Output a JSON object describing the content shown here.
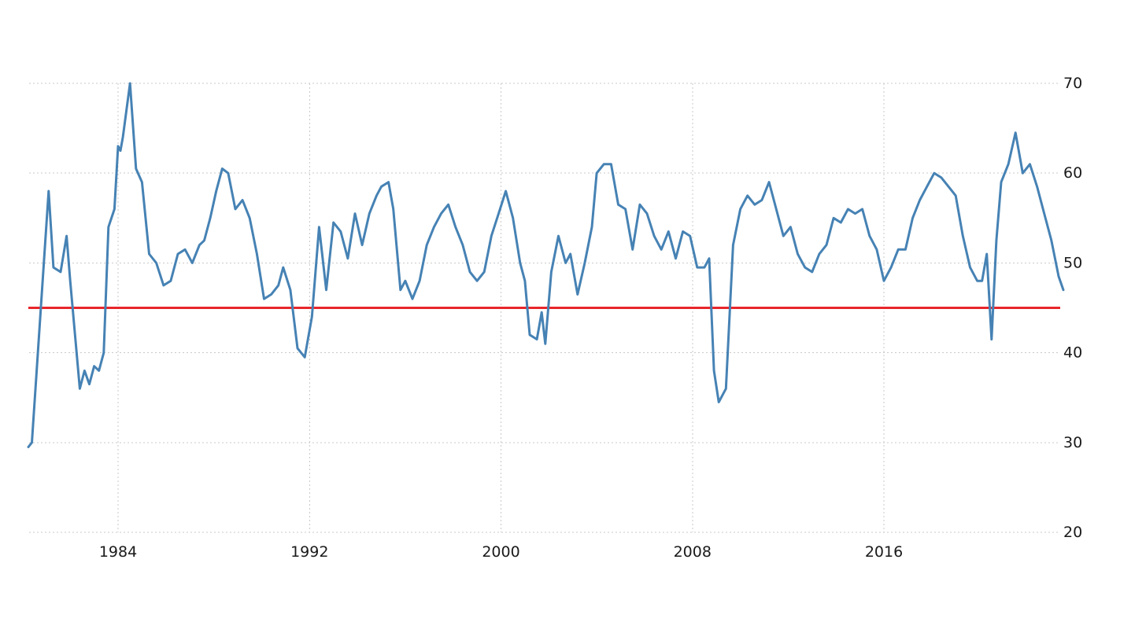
{
  "colors": {
    "series": "#4682b4",
    "reference": "#e8262b",
    "grid": "#c9c9c9",
    "text": "#1a1a1a",
    "background": "#ffffff"
  },
  "chart_data": {
    "type": "line",
    "title": "",
    "xlabel": "",
    "ylabel": "",
    "x_range": [
      1980.25,
      2023.5
    ],
    "ylim": [
      20,
      70
    ],
    "y_ticks": [
      20,
      30,
      40,
      50,
      60,
      70
    ],
    "x_ticks": [
      1984,
      1992,
      2000,
      2008,
      2016
    ],
    "y_axis_side": "right",
    "grid": true,
    "legend": "none",
    "reference_line": {
      "y": 45
    },
    "series": [
      {
        "x": [
          1980.25,
          1980.4,
          1980.6,
          1980.9,
          1981.1,
          1981.3,
          1981.6,
          1981.85,
          1982.0,
          1982.2,
          1982.4,
          1982.6,
          1982.8,
          1983.0,
          1983.2,
          1983.4,
          1983.6,
          1983.85,
          1984.0,
          1984.1,
          1984.2,
          1984.5,
          1984.75,
          1985.0,
          1985.3,
          1985.6,
          1985.9,
          1986.2,
          1986.5,
          1986.8,
          1987.1,
          1987.4,
          1987.6,
          1987.85,
          1988.1,
          1988.35,
          1988.6,
          1988.9,
          1989.2,
          1989.5,
          1989.8,
          1990.1,
          1990.4,
          1990.7,
          1990.9,
          1991.2,
          1991.5,
          1991.8,
          1992.1,
          1992.4,
          1992.7,
          1993.0,
          1993.3,
          1993.6,
          1993.9,
          1994.2,
          1994.5,
          1994.8,
          1995.0,
          1995.3,
          1995.5,
          1995.8,
          1996.0,
          1996.3,
          1996.6,
          1996.9,
          1997.2,
          1997.5,
          1997.8,
          1998.1,
          1998.4,
          1998.7,
          1999.0,
          1999.3,
          1999.6,
          1999.9,
          2000.2,
          2000.5,
          2000.8,
          2001.0,
          2001.2,
          2001.5,
          2001.7,
          2001.85,
          2002.1,
          2002.4,
          2002.7,
          2002.9,
          2003.2,
          2003.5,
          2003.8,
          2004.0,
          2004.3,
          2004.6,
          2004.9,
          2005.2,
          2005.5,
          2005.8,
          2006.1,
          2006.4,
          2006.7,
          2007.0,
          2007.3,
          2007.6,
          2007.9,
          2008.2,
          2008.5,
          2008.7,
          2008.9,
          2009.1,
          2009.4,
          2009.7,
          2010.0,
          2010.3,
          2010.6,
          2010.9,
          2011.2,
          2011.5,
          2011.8,
          2012.1,
          2012.4,
          2012.7,
          2013.0,
          2013.3,
          2013.6,
          2013.9,
          2014.2,
          2014.5,
          2014.8,
          2015.1,
          2015.4,
          2015.7,
          2016.0,
          2016.3,
          2016.6,
          2016.9,
          2017.2,
          2017.5,
          2017.8,
          2018.1,
          2018.4,
          2018.7,
          2019.0,
          2019.3,
          2019.6,
          2019.9,
          2020.1,
          2020.3,
          2020.5,
          2020.7,
          2020.9,
          2021.2,
          2021.5,
          2021.8,
          2022.1,
          2022.4,
          2022.7,
          2023.0,
          2023.3,
          2023.5
        ],
        "values": [
          29.5,
          30.0,
          38.0,
          50.0,
          58.0,
          49.5,
          49.0,
          53.0,
          48.0,
          42.0,
          36.0,
          38.0,
          36.5,
          38.5,
          38.0,
          40.0,
          54.0,
          56.0,
          63.0,
          62.5,
          64.0,
          70.0,
          60.5,
          59.0,
          51.0,
          50.0,
          47.5,
          48.0,
          51.0,
          51.5,
          50.0,
          52.0,
          52.5,
          55.0,
          58.0,
          60.5,
          60.0,
          56.0,
          57.0,
          55.0,
          51.0,
          46.0,
          46.5,
          47.5,
          49.5,
          47.0,
          40.5,
          39.5,
          44.0,
          54.0,
          47.0,
          54.5,
          53.5,
          50.5,
          55.5,
          52.0,
          55.5,
          57.5,
          58.5,
          59.0,
          56.0,
          47.0,
          48.0,
          46.0,
          48.0,
          52.0,
          54.0,
          55.5,
          56.5,
          54.0,
          52.0,
          49.0,
          48.0,
          49.0,
          53.0,
          55.5,
          58.0,
          55.0,
          50.0,
          48.0,
          42.0,
          41.5,
          44.5,
          41.0,
          49.0,
          53.0,
          50.0,
          51.0,
          46.5,
          50.0,
          54.0,
          60.0,
          61.0,
          61.0,
          56.5,
          56.0,
          51.5,
          56.5,
          55.5,
          53.0,
          51.5,
          53.5,
          50.5,
          53.5,
          53.0,
          49.5,
          49.5,
          50.5,
          38.0,
          34.5,
          36.0,
          52.0,
          56.0,
          57.5,
          56.5,
          57.0,
          59.0,
          56.0,
          53.0,
          54.0,
          51.0,
          49.5,
          49.0,
          51.0,
          52.0,
          55.0,
          54.5,
          56.0,
          55.5,
          56.0,
          53.0,
          51.5,
          48.0,
          49.5,
          51.5,
          51.5,
          55.0,
          57.0,
          58.5,
          60.0,
          59.5,
          58.5,
          57.5,
          53.0,
          49.5,
          48.0,
          48.0,
          51.0,
          41.5,
          52.5,
          59.0,
          61.0,
          64.5,
          60.0,
          61.0,
          58.5,
          55.5,
          52.5,
          48.5,
          47.0
        ]
      }
    ]
  }
}
